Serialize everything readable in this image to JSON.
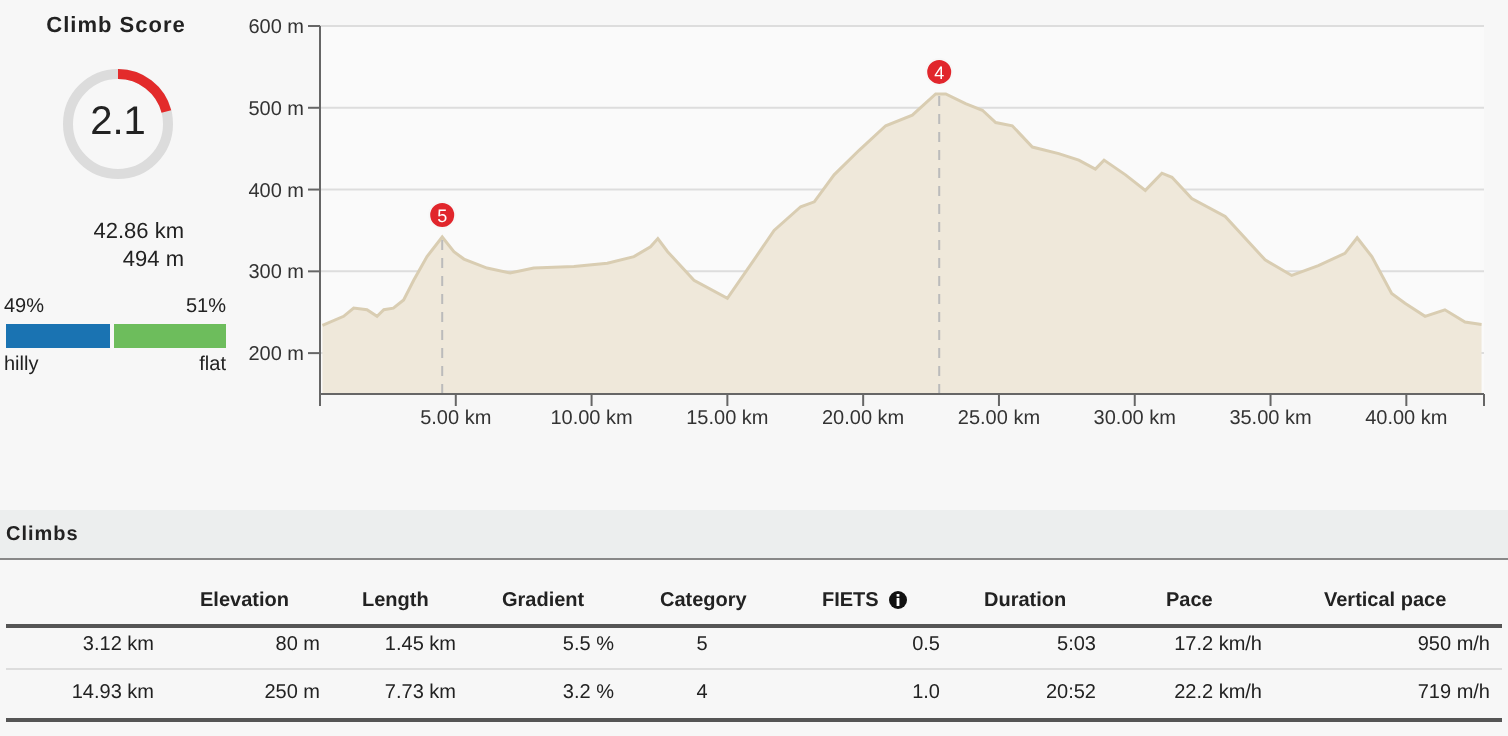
{
  "chart_data": [
    {
      "type": "other",
      "title": "Climb Score",
      "annotations": [
        "2.1",
        "42.86 km",
        "494 m",
        "49%",
        "51%",
        "hilly",
        "flat"
      ]
    },
    {
      "type": "area",
      "color": "#d9cdb2",
      "x": [
        0.09,
        0.87,
        1.24,
        1.73,
        2.1,
        2.35,
        2.7,
        3.08,
        3.45,
        3.94,
        4.5,
        4.93,
        5.3,
        6.15,
        7.0,
        7.87,
        9.35,
        10.58,
        11.56,
        12.17,
        12.44,
        12.8,
        13.77,
        15.0,
        15.98,
        16.72,
        17.7,
        18.2,
        18.93,
        19.85,
        20.83,
        21.81,
        22.67,
        23.04,
        23.77,
        24.39,
        24.88,
        25.49,
        26.23,
        27.2,
        27.94,
        28.55,
        28.87,
        29.66,
        30.39,
        31.0,
        31.37,
        32.1,
        33.33,
        34.8,
        35.78,
        36.76,
        37.74,
        38.19,
        38.73,
        39.46,
        39.95,
        40.69,
        41.42,
        42.16,
        42.77
      ],
      "values": [
        234,
        245,
        255,
        253,
        245,
        253,
        255,
        265,
        289,
        318,
        342,
        324,
        315,
        304,
        298,
        304,
        306,
        310,
        318,
        330,
        340,
        324,
        289,
        267,
        314,
        350,
        379,
        385,
        418,
        448,
        478,
        491,
        517,
        517,
        505,
        497,
        482,
        478,
        452,
        444,
        436,
        425,
        436,
        418,
        399,
        420,
        415,
        389,
        367,
        314,
        295,
        307,
        322,
        341,
        318,
        273,
        261,
        245,
        253,
        238,
        235
      ],
      "xlim": [
        0,
        42.86
      ],
      "ylim": [
        150,
        600
      ],
      "xticks": [
        {
          "value": 0,
          "label": null
        },
        {
          "value": 5,
          "label": "5.00 km"
        },
        {
          "value": 10,
          "label": "10.00 km"
        },
        {
          "value": 15,
          "label": "15.00 km"
        },
        {
          "value": 20,
          "label": "20.00 km"
        },
        {
          "value": 25,
          "label": "25.00 km"
        },
        {
          "value": 30,
          "label": "30.00 km"
        },
        {
          "value": 35,
          "label": "35.00 km"
        },
        {
          "value": 40,
          "label": "40.00 km"
        },
        {
          "value": 42.86,
          "label": null
        }
      ],
      "yticks": [
        {
          "value": 200,
          "label": "200 m"
        },
        {
          "value": 300,
          "label": "300 m"
        },
        {
          "value": 400,
          "label": "400 m"
        },
        {
          "value": 500,
          "label": "500 m"
        },
        {
          "value": 600,
          "label": "600 m"
        }
      ],
      "grid": "y",
      "ref_lines": [
        {
          "axis": "x",
          "value": 4.5,
          "color": "#bbbbbb",
          "line_style": "dashed"
        },
        {
          "axis": "x",
          "value": 22.8,
          "color": "#bbbbbb",
          "line_style": "dashed"
        }
      ],
      "annotations": [
        {
          "text": "5",
          "x": 4.5,
          "y": 342
        },
        {
          "text": "4",
          "x": 22.8,
          "y": 517
        }
      ]
    },
    {
      "type": "other",
      "title": "Climbs",
      "annotations": [
        "Elevation",
        "Length",
        "Gradient",
        "Category",
        "FIETS",
        "Duration",
        "Pace",
        "Vertical pace",
        "3.12 km",
        "80 m",
        "1.45 km",
        "5.5 %",
        "5",
        "0.5",
        "5:03",
        "17.2 km/h",
        "950 m/h",
        "14.93 km",
        "250 m",
        "7.73 km",
        "3.2 %",
        "4",
        "1.0",
        "20:52",
        "22.2 km/h",
        "719 m/h"
      ]
    }
  ]
}
